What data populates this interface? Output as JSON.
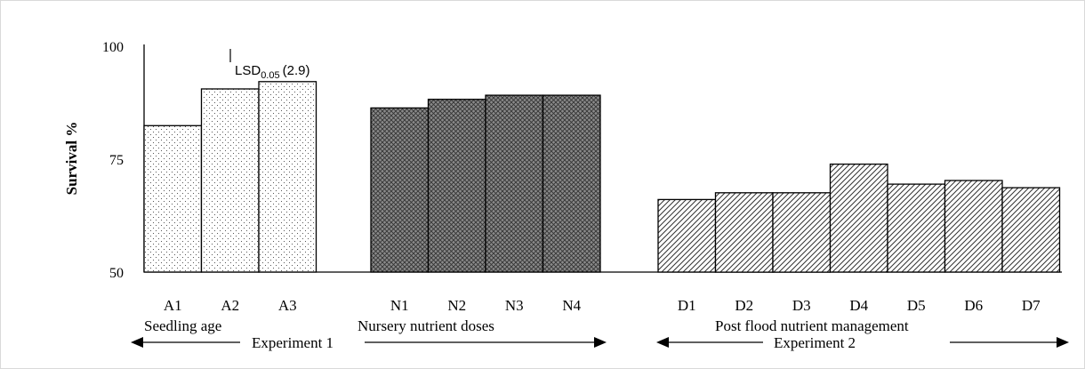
{
  "chart_data": {
    "type": "bar",
    "ylabel": "Survival %",
    "ylim": [
      50,
      100
    ],
    "yticks": [
      "100",
      "75",
      "50"
    ],
    "lsd_label": {
      "main": "LSD",
      "sub": "0.05",
      "value": "(2.9)"
    },
    "bars": [
      {
        "label": "A1",
        "value": 82.3,
        "group": 0
      },
      {
        "label": "A2",
        "value": 90.4,
        "group": 0
      },
      {
        "label": "A3",
        "value": 92.0,
        "group": 0
      },
      {
        "label": "N1",
        "value": 86.2,
        "group": 1
      },
      {
        "label": "N2",
        "value": 88.1,
        "group": 1
      },
      {
        "label": "N3",
        "value": 89.0,
        "group": 1
      },
      {
        "label": "N4",
        "value": 89.0,
        "group": 1
      },
      {
        "label": "D1",
        "value": 66.0,
        "group": 2
      },
      {
        "label": "D2",
        "value": 67.5,
        "group": 2
      },
      {
        "label": "D3",
        "value": 67.5,
        "group": 2
      },
      {
        "label": "D4",
        "value": 73.8,
        "group": 2
      },
      {
        "label": "D5",
        "value": 69.4,
        "group": 2
      },
      {
        "label": "D6",
        "value": 70.2,
        "group": 2
      },
      {
        "label": "D7",
        "value": 68.6,
        "group": 2
      }
    ],
    "groups": [
      "Seedling age",
      "Nursery nutrient doses",
      "Post flood nutrient management"
    ],
    "experiments": [
      "Experiment 1",
      "Experiment 2"
    ],
    "colors": {
      "axis": "#000000",
      "bar_stroke": "#000000",
      "fill_dots": "#555555",
      "fill_dark": "#444444",
      "fill_hatch": "#333333"
    }
  }
}
